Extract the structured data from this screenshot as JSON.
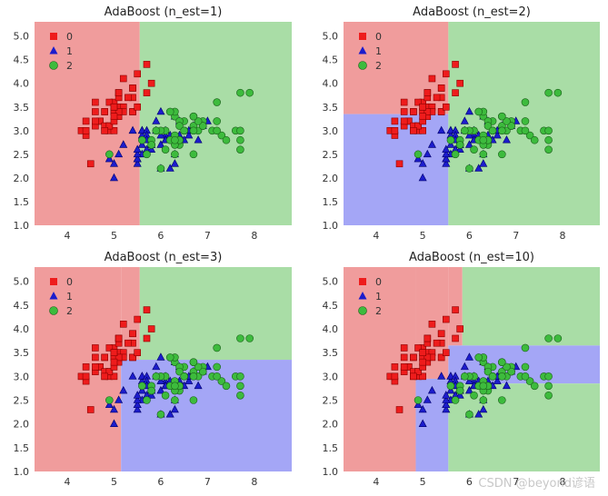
{
  "chart_data": [
    {
      "type": "scatter",
      "title": "AdaBoost (n_est=1)",
      "xlim": [
        3.3,
        8.8
      ],
      "ylim": [
        1.0,
        5.3
      ],
      "xticks": [
        "4",
        "5",
        "6",
        "7",
        "8"
      ],
      "yticks": [
        "1.0",
        "1.5",
        "2.0",
        "2.5",
        "3.0",
        "3.5",
        "4.0",
        "4.5",
        "5.0"
      ],
      "legend": [
        "0",
        "1",
        "2"
      ],
      "legend_position": "top-left",
      "regions": [
        {
          "class": 0,
          "x": [
            3.3,
            5.55
          ],
          "y": [
            1.0,
            5.3
          ]
        },
        {
          "class": 2,
          "x": [
            5.55,
            8.8
          ],
          "y": [
            1.0,
            5.3
          ]
        }
      ]
    },
    {
      "type": "scatter",
      "title": "AdaBoost (n_est=2)",
      "xlim": [
        3.3,
        8.8
      ],
      "ylim": [
        1.0,
        5.3
      ],
      "xticks": [
        "4",
        "5",
        "6",
        "7",
        "8"
      ],
      "yticks": [
        "1.0",
        "1.5",
        "2.0",
        "2.5",
        "3.0",
        "3.5",
        "4.0",
        "4.5",
        "5.0"
      ],
      "legend": [
        "0",
        "1",
        "2"
      ],
      "legend_position": "top-left",
      "regions": [
        {
          "class": 0,
          "x": [
            3.3,
            5.55
          ],
          "y": [
            3.35,
            5.3
          ]
        },
        {
          "class": 1,
          "x": [
            3.3,
            5.55
          ],
          "y": [
            1.0,
            3.35
          ]
        },
        {
          "class": 2,
          "x": [
            5.55,
            8.8
          ],
          "y": [
            1.0,
            5.3
          ]
        }
      ]
    },
    {
      "type": "scatter",
      "title": "AdaBoost (n_est=3)",
      "xlim": [
        3.3,
        8.8
      ],
      "ylim": [
        1.0,
        5.3
      ],
      "xticks": [
        "4",
        "5",
        "6",
        "7",
        "8"
      ],
      "yticks": [
        "1.0",
        "1.5",
        "2.0",
        "2.5",
        "3.0",
        "3.5",
        "4.0",
        "4.5",
        "5.0"
      ],
      "legend": [
        "0",
        "1",
        "2"
      ],
      "legend_position": "top-left",
      "regions": [
        {
          "class": 0,
          "x": [
            3.3,
            5.15
          ],
          "y": [
            1.0,
            5.3
          ]
        },
        {
          "class": 0,
          "x": [
            5.15,
            5.55
          ],
          "y": [
            3.35,
            5.3
          ]
        },
        {
          "class": 1,
          "x": [
            5.15,
            8.8
          ],
          "y": [
            1.0,
            3.35
          ]
        },
        {
          "class": 2,
          "x": [
            5.55,
            8.8
          ],
          "y": [
            3.35,
            5.3
          ]
        }
      ]
    },
    {
      "type": "scatter",
      "title": "AdaBoost (n_est=10)",
      "xlim": [
        3.3,
        8.8
      ],
      "ylim": [
        1.0,
        5.3
      ],
      "xticks": [
        "4",
        "5",
        "6",
        "7",
        "8"
      ],
      "yticks": [
        "1.0",
        "1.5",
        "2.0",
        "2.5",
        "3.0",
        "3.5",
        "4.0",
        "4.5",
        "5.0"
      ],
      "legend": [
        "0",
        "1",
        "2"
      ],
      "legend_position": "top-left",
      "regions": [
        {
          "class": 0,
          "x": [
            3.3,
            4.85
          ],
          "y": [
            1.0,
            5.3
          ]
        },
        {
          "class": 0,
          "x": [
            4.85,
            5.55
          ],
          "y": [
            2.95,
            5.3
          ]
        },
        {
          "class": 1,
          "x": [
            4.85,
            5.55
          ],
          "y": [
            1.0,
            2.95
          ]
        },
        {
          "class": 0,
          "x": [
            5.55,
            5.85
          ],
          "y": [
            3.65,
            5.3
          ]
        },
        {
          "class": 2,
          "x": [
            5.85,
            8.8
          ],
          "y": [
            3.65,
            5.3
          ]
        },
        {
          "class": 1,
          "x": [
            5.55,
            8.8
          ],
          "y": [
            2.85,
            3.65
          ]
        },
        {
          "class": 2,
          "x": [
            5.55,
            8.8
          ],
          "y": [
            1.0,
            2.85
          ]
        }
      ]
    }
  ],
  "points": {
    "class0": [
      [
        5.1,
        3.5
      ],
      [
        4.9,
        3.0
      ],
      [
        4.7,
        3.2
      ],
      [
        4.6,
        3.1
      ],
      [
        5.0,
        3.6
      ],
      [
        5.4,
        3.9
      ],
      [
        4.6,
        3.4
      ],
      [
        5.0,
        3.4
      ],
      [
        4.4,
        2.9
      ],
      [
        4.9,
        3.1
      ],
      [
        5.4,
        3.7
      ],
      [
        4.8,
        3.4
      ],
      [
        4.8,
        3.0
      ],
      [
        4.3,
        3.0
      ],
      [
        5.8,
        4.0
      ],
      [
        5.7,
        4.4
      ],
      [
        5.4,
        3.9
      ],
      [
        5.1,
        3.5
      ],
      [
        5.7,
        3.8
      ],
      [
        5.1,
        3.8
      ],
      [
        5.4,
        3.4
      ],
      [
        5.1,
        3.7
      ],
      [
        4.6,
        3.6
      ],
      [
        5.1,
        3.3
      ],
      [
        4.8,
        3.4
      ],
      [
        5.0,
        3.0
      ],
      [
        5.0,
        3.4
      ],
      [
        5.2,
        3.5
      ],
      [
        5.2,
        3.4
      ],
      [
        4.7,
        3.2
      ],
      [
        4.8,
        3.1
      ],
      [
        5.4,
        3.4
      ],
      [
        5.2,
        4.1
      ],
      [
        5.5,
        4.2
      ],
      [
        4.9,
        3.1
      ],
      [
        5.0,
        3.2
      ],
      [
        5.5,
        3.5
      ],
      [
        4.9,
        3.6
      ],
      [
        4.4,
        3.0
      ],
      [
        5.1,
        3.4
      ],
      [
        5.0,
        3.5
      ],
      [
        4.5,
        2.3
      ],
      [
        4.4,
        3.2
      ],
      [
        5.0,
        3.5
      ],
      [
        5.1,
        3.8
      ],
      [
        4.8,
        3.0
      ],
      [
        5.1,
        3.8
      ],
      [
        4.6,
        3.2
      ],
      [
        5.3,
        3.7
      ],
      [
        5.0,
        3.3
      ]
    ],
    "class1": [
      [
        7.0,
        3.2
      ],
      [
        6.4,
        3.2
      ],
      [
        6.9,
        3.1
      ],
      [
        5.5,
        2.3
      ],
      [
        6.5,
        2.8
      ],
      [
        5.7,
        2.8
      ],
      [
        6.3,
        3.3
      ],
      [
        4.9,
        2.4
      ],
      [
        6.6,
        2.9
      ],
      [
        5.2,
        2.7
      ],
      [
        5.0,
        2.0
      ],
      [
        5.9,
        3.0
      ],
      [
        6.0,
        2.2
      ],
      [
        6.1,
        2.9
      ],
      [
        5.6,
        2.9
      ],
      [
        6.7,
        3.1
      ],
      [
        5.6,
        3.0
      ],
      [
        5.8,
        2.7
      ],
      [
        6.2,
        2.2
      ],
      [
        5.6,
        2.5
      ],
      [
        5.9,
        3.2
      ],
      [
        6.1,
        2.8
      ],
      [
        6.3,
        2.5
      ],
      [
        6.1,
        2.8
      ],
      [
        6.4,
        2.9
      ],
      [
        6.6,
        3.0
      ],
      [
        6.8,
        2.8
      ],
      [
        6.7,
        3.0
      ],
      [
        6.0,
        2.9
      ],
      [
        5.7,
        2.6
      ],
      [
        5.5,
        2.4
      ],
      [
        5.5,
        2.4
      ],
      [
        5.8,
        2.7
      ],
      [
        6.0,
        2.7
      ],
      [
        5.4,
        3.0
      ],
      [
        6.0,
        3.4
      ],
      [
        6.7,
        3.1
      ],
      [
        6.3,
        2.3
      ],
      [
        5.6,
        3.0
      ],
      [
        5.5,
        2.5
      ],
      [
        5.5,
        2.6
      ],
      [
        6.1,
        3.0
      ],
      [
        5.8,
        2.6
      ],
      [
        5.0,
        2.3
      ],
      [
        5.6,
        2.7
      ],
      [
        5.7,
        3.0
      ],
      [
        5.7,
        2.9
      ],
      [
        6.2,
        2.9
      ],
      [
        5.1,
        2.5
      ],
      [
        5.7,
        2.8
      ]
    ],
    "class2": [
      [
        6.3,
        3.3
      ],
      [
        5.8,
        2.7
      ],
      [
        7.1,
        3.0
      ],
      [
        6.3,
        2.9
      ],
      [
        6.5,
        3.0
      ],
      [
        7.6,
        3.0
      ],
      [
        4.9,
        2.5
      ],
      [
        7.3,
        2.9
      ],
      [
        6.7,
        2.5
      ],
      [
        7.2,
        3.6
      ],
      [
        6.5,
        3.2
      ],
      [
        6.4,
        2.7
      ],
      [
        6.8,
        3.0
      ],
      [
        5.7,
        2.5
      ],
      [
        5.8,
        2.8
      ],
      [
        6.4,
        3.2
      ],
      [
        6.5,
        3.0
      ],
      [
        7.7,
        3.8
      ],
      [
        7.7,
        2.6
      ],
      [
        6.0,
        2.2
      ],
      [
        6.9,
        3.2
      ],
      [
        5.6,
        2.8
      ],
      [
        7.7,
        2.8
      ],
      [
        6.3,
        2.7
      ],
      [
        6.7,
        3.3
      ],
      [
        7.2,
        3.2
      ],
      [
        6.2,
        2.8
      ],
      [
        6.1,
        3.0
      ],
      [
        6.4,
        2.8
      ],
      [
        7.2,
        3.0
      ],
      [
        7.4,
        2.8
      ],
      [
        7.9,
        3.8
      ],
      [
        6.4,
        2.8
      ],
      [
        6.3,
        2.8
      ],
      [
        6.1,
        2.6
      ],
      [
        7.7,
        3.0
      ],
      [
        6.3,
        3.4
      ],
      [
        6.4,
        3.1
      ],
      [
        6.0,
        3.0
      ],
      [
        6.9,
        3.1
      ],
      [
        6.7,
        3.1
      ],
      [
        6.9,
        3.1
      ],
      [
        5.8,
        2.7
      ],
      [
        6.8,
        3.2
      ],
      [
        6.7,
        3.3
      ],
      [
        6.7,
        3.0
      ],
      [
        6.3,
        2.5
      ],
      [
        6.5,
        3.0
      ],
      [
        6.2,
        3.4
      ],
      [
        5.9,
        3.0
      ]
    ]
  },
  "colors": {
    "region0": "#f09c9c",
    "region1": "#a4a6f6",
    "region2": "#a9dda6",
    "marker0": "#ee1c1c",
    "marker1": "#1c1ccc",
    "marker2": "#3dbb3d"
  },
  "watermark": "CSDN @beyond谚语"
}
